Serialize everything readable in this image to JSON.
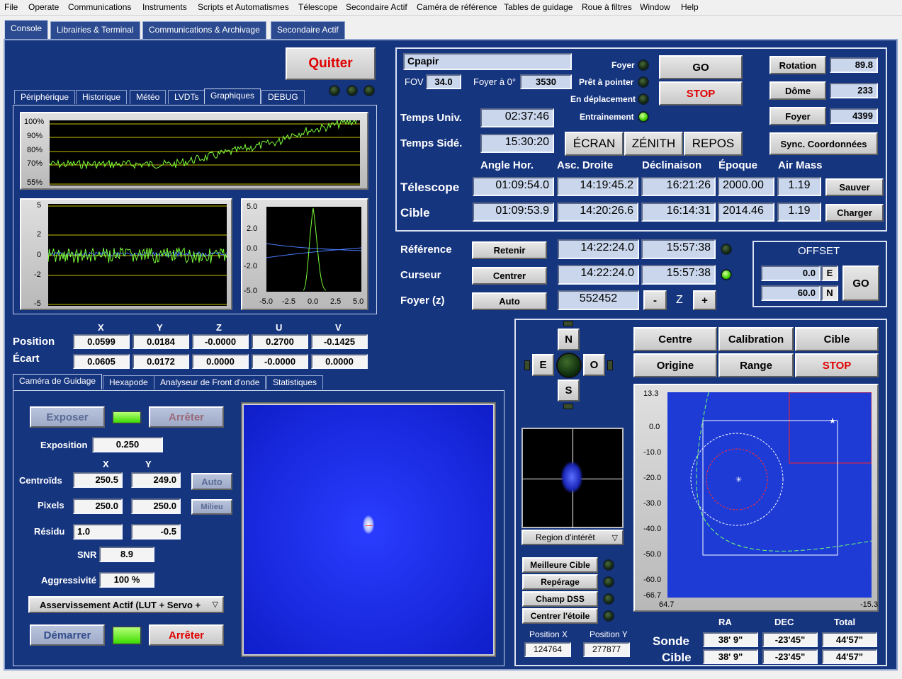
{
  "menu": [
    "File",
    "Operate",
    "Communications",
    "Instruments",
    "Scripts et Automatismes",
    "Télescope",
    "Secondaire Actif",
    "Caméra de référence",
    "Tables de guidage",
    "Roue à filtres",
    "Window",
    "Help"
  ],
  "main_tabs": [
    "Console",
    "Librairies & Terminal",
    "Communications & Archivage",
    "Secondaire Actif"
  ],
  "quit_label": "Quitter",
  "sub_tabs": [
    "Périphérique",
    "Historique",
    "Météo",
    "LVDTs",
    "Graphiques",
    "DEBUG"
  ],
  "plot1": {
    "ticks": [
      "100%",
      "90%",
      "80%",
      "70%",
      "55%"
    ]
  },
  "plot2": {
    "ticks": [
      "5",
      "2",
      "0",
      "-2",
      "-5"
    ]
  },
  "plot3": {
    "yticks": [
      "5.0",
      "2.0",
      "0.0",
      "-2.0",
      "-5.0"
    ],
    "xticks": [
      "-5.0",
      "-2.5",
      "0.0",
      "2.5",
      "5.0"
    ]
  },
  "position": {
    "headers": [
      "X",
      "Y",
      "Z",
      "U",
      "V"
    ],
    "position_label": "Position",
    "ecart_label": "Écart",
    "position": [
      "0.0599",
      "0.0184",
      "-0.0000",
      "0.2700",
      "-0.1425"
    ],
    "ecart": [
      "0.0605",
      "0.0172",
      "0.0000",
      "-0.0000",
      "0.0000"
    ]
  },
  "guide_tabs": [
    "Caméra de Guidage",
    "Hexapode",
    "Analyseur de Front d'onde",
    "Statistiques"
  ],
  "guide": {
    "exposer": "Exposer",
    "arreter": "Arrêter",
    "exposition_label": "Exposition",
    "exposition": "0.250",
    "x_label": "X",
    "y_label": "Y",
    "centroids_label": "Centroïds",
    "centroids": [
      "250.5",
      "249.0"
    ],
    "auto": "Auto",
    "pixels_label": "Pixels",
    "pixels": [
      "250.0",
      "250.0"
    ],
    "milieu": "Milieu",
    "residu_label": "Résidu",
    "residu": [
      "1.0",
      "-0.5"
    ],
    "snr_label": "SNR",
    "snr": "8.9",
    "aggr_label": "Aggressivité",
    "aggr": "100 %",
    "servo": "Asservissement Actif (LUT + Servo +",
    "demarrer": "Démarrer",
    "arreter2": "Arrêter"
  },
  "telescope": {
    "name": "Cpapir",
    "fov_label": "FOV",
    "fov": "34.0",
    "foyer0_label": "Foyer à 0°",
    "foyer0": "3530",
    "status": [
      "Foyer",
      "Prêt à pointer",
      "En déplacement",
      "Entrainement"
    ],
    "go": "GO",
    "stop": "STOP",
    "rotation_label": "Rotation",
    "rotation": "89.8",
    "dome_label": "Dôme",
    "dome": "233",
    "foyer_label": "Foyer",
    "foyer": "4399",
    "sync": "Sync. Coordonnées",
    "tu_label": "Temps Univ.",
    "tu": "02:37:46",
    "ts_label": "Temps Sidé.",
    "ts": "15:30:20",
    "ecran": "ÉCRAN",
    "zenith": "ZÉNITH",
    "repos": "REPOS",
    "cols": [
      "Angle Hor.",
      "Asc. Droite",
      "Déclinaison",
      "Époque",
      "Air Mass"
    ],
    "tel_label": "Télescope",
    "tel": [
      "01:09:54.0",
      "14:19:45.2",
      "16:21:26",
      "2000.00",
      "1.19"
    ],
    "cible_label": "Cible",
    "cible": [
      "01:09:53.9",
      "14:20:26.6",
      "16:14:31",
      "2014.46",
      "1.19"
    ],
    "sauver": "Sauver",
    "charger": "Charger"
  },
  "reference": {
    "ref_label": "Référence",
    "retenir": "Retenir",
    "ref": [
      "14:22:24.0",
      "15:57:38"
    ],
    "cur_label": "Curseur",
    "centrer": "Centrer",
    "cur": [
      "14:22:24.0",
      "15:57:38"
    ],
    "foyer_label": "Foyer (z)",
    "auto": "Auto",
    "foyer": "552452",
    "minus": "-",
    "z": "Z",
    "plus": "+"
  },
  "offset": {
    "title": "OFFSET",
    "e": "0.0",
    "e_label": "E",
    "n": "60.0",
    "n_label": "N",
    "go": "GO"
  },
  "pad": {
    "n": "N",
    "e": "E",
    "o": "O",
    "s": "S"
  },
  "roi": "Region d'intérêt",
  "actions": [
    "Meilleure Cible",
    "Repérage",
    "Champ DSS",
    "Centrer l'étoile"
  ],
  "pos": {
    "x_label": "Position X",
    "x": "124764",
    "y_label": "Position Y",
    "y": "277877"
  },
  "map_buttons": [
    "Centre",
    "Calibration",
    "Cible",
    "Origine",
    "Range",
    "STOP"
  ],
  "map": {
    "yticks": [
      "13.3",
      "0.0",
      "-10.0",
      "-20.0",
      "-30.0",
      "-40.0",
      "-50.0",
      "-60.0",
      "-66.7"
    ],
    "xticks": [
      "64.7",
      "-15.3"
    ]
  },
  "sonde": {
    "headers": [
      "RA",
      "DEC",
      "Total"
    ],
    "sonde_label": "Sonde",
    "cible_label": "Cible",
    "sonde": [
      "38' 9\"",
      "-23'45\"",
      "44'57\""
    ],
    "cible": [
      "38' 9\"",
      "-23'45\"",
      "44'57\""
    ]
  }
}
